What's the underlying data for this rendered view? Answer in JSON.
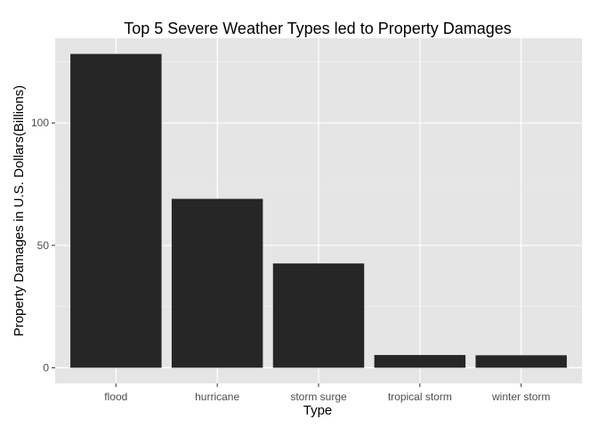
{
  "chart_data": {
    "type": "bar",
    "title": "Top 5 Severe Weather Types led to Property Damages",
    "xlabel": "Type",
    "ylabel": "Property Damages in U.S. Dollars(Billions)",
    "categories": [
      "flood",
      "hurricane",
      "storm surge",
      "tropical storm",
      "winter storm"
    ],
    "values": [
      128.2,
      69,
      42.6,
      5.2,
      5.1
    ],
    "ylim": [
      -6.4,
      134.6
    ],
    "yticks": [
      0,
      50,
      100
    ],
    "yticks_minor": [
      25,
      75,
      125
    ],
    "grid": true,
    "legend": "none",
    "colors": {
      "bar": "#262626",
      "panel": "#e5e5e5",
      "grid_major": "#ffffff",
      "grid_minor": "#f2f2f2",
      "tick_text": "#4d4d4d",
      "tick_mark": "#333333"
    }
  }
}
